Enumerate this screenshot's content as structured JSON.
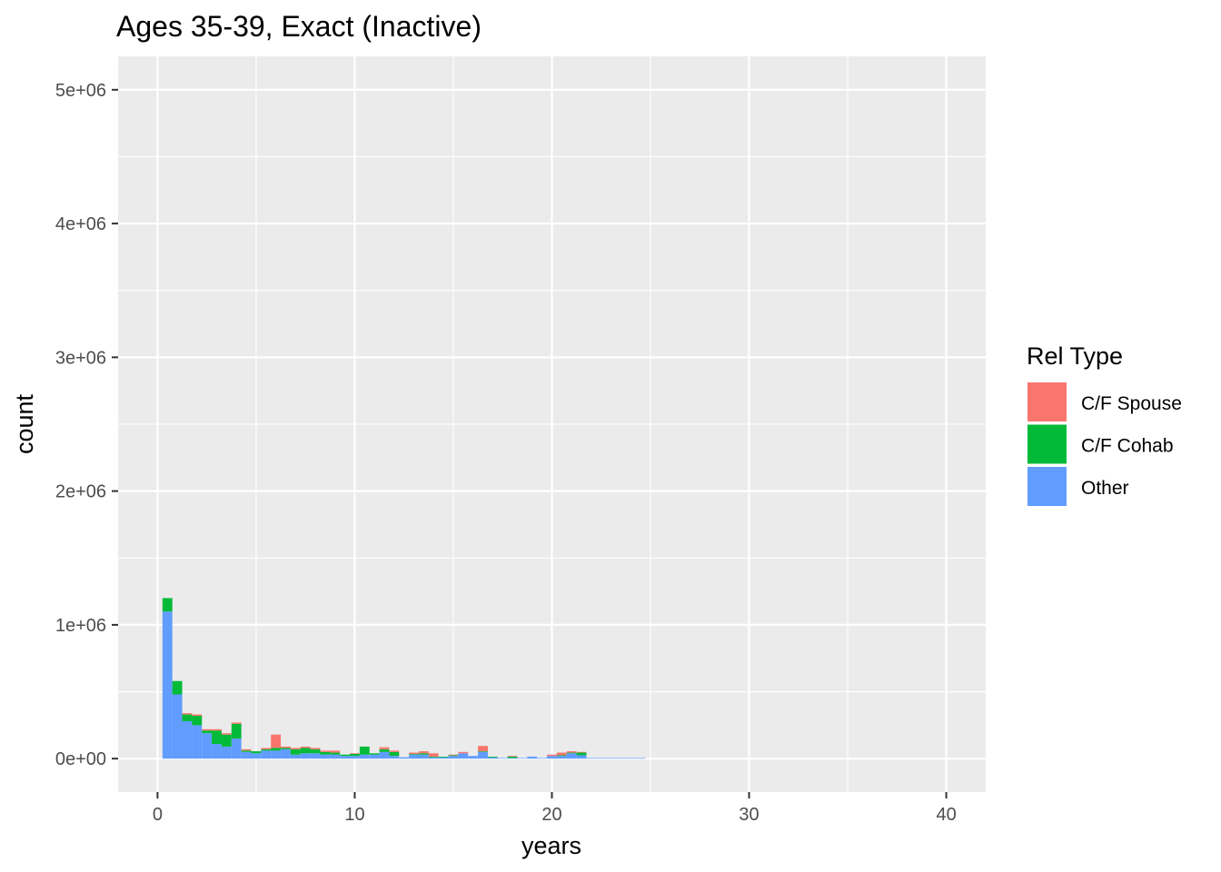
{
  "chart_data": {
    "type": "bar",
    "title": "Ages 35-39, Exact (Inactive)",
    "xlabel": "years",
    "ylabel": "count",
    "xlim": [
      -2,
      42
    ],
    "ylim": [
      -250000,
      5250000
    ],
    "x_ticks": [
      0,
      10,
      20,
      30,
      40
    ],
    "x_tick_labels": [
      "0",
      "10",
      "20",
      "30",
      "40"
    ],
    "y_ticks": [
      0,
      1000000,
      2000000,
      3000000,
      4000000,
      5000000
    ],
    "y_tick_labels": [
      "0e+00",
      "1e+06",
      "2e+06",
      "3e+06",
      "4e+06",
      "5e+06"
    ],
    "grid": true,
    "stacked": true,
    "bin_width": 0.5,
    "legend": {
      "title": "Rel Type",
      "position": "right"
    },
    "bin_centers": [
      0.5,
      1.0,
      1.5,
      2.0,
      2.5,
      3.0,
      3.5,
      4.0,
      4.5,
      5.0,
      5.5,
      6.0,
      6.5,
      7.0,
      7.5,
      8.0,
      8.5,
      9.0,
      9.5,
      10.0,
      10.5,
      11.0,
      11.5,
      12.0,
      12.5,
      13.0,
      13.5,
      14.0,
      14.5,
      15.0,
      15.5,
      16.0,
      16.5,
      17.0,
      17.5,
      18.0,
      18.5,
      19.0,
      19.5,
      20.0,
      20.5,
      21.0,
      21.5,
      22.0,
      22.5,
      23.0,
      23.5,
      24.0,
      24.5
    ],
    "series": [
      {
        "name": "Other",
        "color": "#619CFF",
        "values": [
          1100000,
          480000,
          280000,
          250000,
          190000,
          110000,
          90000,
          150000,
          50000,
          40000,
          60000,
          60000,
          70000,
          30000,
          40000,
          40000,
          30000,
          30000,
          20000,
          20000,
          30000,
          30000,
          50000,
          20000,
          10000,
          30000,
          30000,
          10000,
          10000,
          20000,
          40000,
          20000,
          50000,
          10000,
          5000,
          5000,
          5000,
          15000,
          5000,
          20000,
          20000,
          40000,
          25000,
          5000,
          5000,
          5000,
          5000,
          5000,
          5000
        ]
      },
      {
        "name": "C/F Cohab",
        "color": "#00BA38",
        "values": [
          100000,
          100000,
          50000,
          70000,
          20000,
          100000,
          90000,
          110000,
          10000,
          15000,
          10000,
          20000,
          10000,
          40000,
          40000,
          30000,
          20000,
          15000,
          10000,
          15000,
          60000,
          10000,
          20000,
          30000,
          0,
          5000,
          10000,
          5000,
          5000,
          5000,
          0,
          0,
          5000,
          5000,
          0,
          10000,
          0,
          0,
          0,
          0,
          5000,
          5000,
          20000,
          0,
          0,
          0,
          0,
          0,
          0
        ]
      },
      {
        "name": "C/F Spouse",
        "color": "#F8766D",
        "values": [
          0,
          0,
          10000,
          10000,
          10000,
          10000,
          10000,
          10000,
          10000,
          0,
          10000,
          100000,
          10000,
          10000,
          10000,
          10000,
          10000,
          15000,
          0,
          5000,
          0,
          0,
          15000,
          10000,
          0,
          10000,
          15000,
          25000,
          0,
          5000,
          10000,
          0,
          40000,
          0,
          0,
          5000,
          0,
          0,
          0,
          10000,
          20000,
          10000,
          5000,
          0,
          0,
          0,
          0,
          0,
          0
        ]
      }
    ]
  }
}
